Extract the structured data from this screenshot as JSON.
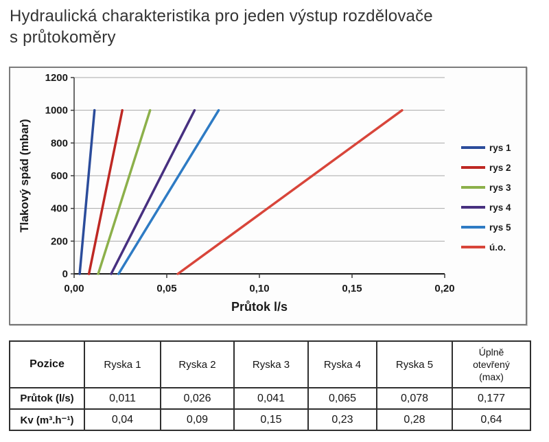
{
  "page": {
    "title_line1": "Hydraulická charakteristika pro jeden výstup rozdělovače",
    "title_line2": "s průtokoměry"
  },
  "chart_data": {
    "type": "line",
    "title": "",
    "xlabel": "Průtok l/s",
    "ylabel": "Tlakový spád (mbar)",
    "xlim": [
      0,
      0.2
    ],
    "ylim": [
      0,
      1200
    ],
    "xticks": [
      {
        "value": 0.0,
        "label": "0,00"
      },
      {
        "value": 0.05,
        "label": "0,05"
      },
      {
        "value": 0.1,
        "label": "0,10"
      },
      {
        "value": 0.15,
        "label": "0,15"
      },
      {
        "value": 0.2,
        "label": "0,20"
      }
    ],
    "yticks": [
      {
        "value": 0,
        "label": "0"
      },
      {
        "value": 200,
        "label": "200"
      },
      {
        "value": 400,
        "label": "400"
      },
      {
        "value": 600,
        "label": "600"
      },
      {
        "value": 800,
        "label": "800"
      },
      {
        "value": 1000,
        "label": "1000"
      },
      {
        "value": 1200,
        "label": "1200"
      }
    ],
    "grid": "horizontal",
    "legend_position": "right",
    "series": [
      {
        "name": "rys 1",
        "color": "#2B4C9B",
        "points": [
          [
            0.003,
            0
          ],
          [
            0.011,
            1000
          ]
        ]
      },
      {
        "name": "rys 2",
        "color": "#BE2823",
        "points": [
          [
            0.008,
            0
          ],
          [
            0.026,
            1000
          ]
        ]
      },
      {
        "name": "rys 3",
        "color": "#8CB04A",
        "points": [
          [
            0.013,
            0
          ],
          [
            0.041,
            1000
          ]
        ]
      },
      {
        "name": "rys 4",
        "color": "#473080",
        "points": [
          [
            0.02,
            0
          ],
          [
            0.065,
            1000
          ]
        ]
      },
      {
        "name": "rys 5",
        "color": "#2E7BC4",
        "points": [
          [
            0.024,
            0
          ],
          [
            0.078,
            1000
          ]
        ]
      },
      {
        "name": "ú.o.",
        "color": "#D8453A",
        "points": [
          [
            0.056,
            0
          ],
          [
            0.177,
            1000
          ]
        ]
      }
    ],
    "axis_color": "#3a3a3a",
    "grid_color": "#a8a8a8",
    "text_color": "#1a1a1a"
  },
  "table": {
    "header": [
      "Pozice",
      "Ryska 1",
      "Ryska 2",
      "Ryska 3",
      "Ryska 4",
      "Ryska 5",
      "Úplně\notevřený\n(max)"
    ],
    "rows": [
      {
        "label": "Průtok (l/s)",
        "values": [
          "0,011",
          "0,026",
          "0,041",
          "0,065",
          "0,078",
          "0,177"
        ]
      },
      {
        "label": "Kv (m³.h⁻¹)",
        "values": [
          "0,04",
          "0,09",
          "0,15",
          "0,23",
          "0,28",
          "0,64"
        ]
      }
    ]
  }
}
